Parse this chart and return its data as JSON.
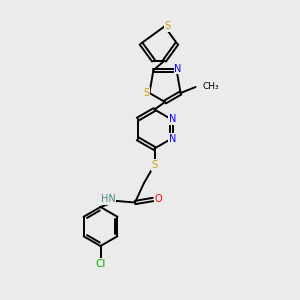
{
  "bg_color": "#ebebeb",
  "bond_color": "#000000",
  "atom_colors": {
    "S": "#c8a000",
    "N": "#0000ff",
    "O": "#ff0000",
    "Cl": "#00bb00",
    "C": "#000000",
    "H": "#4a8a8a"
  },
  "font_size": 7.0,
  "bond_width": 1.4,
  "dbo": 0.055
}
